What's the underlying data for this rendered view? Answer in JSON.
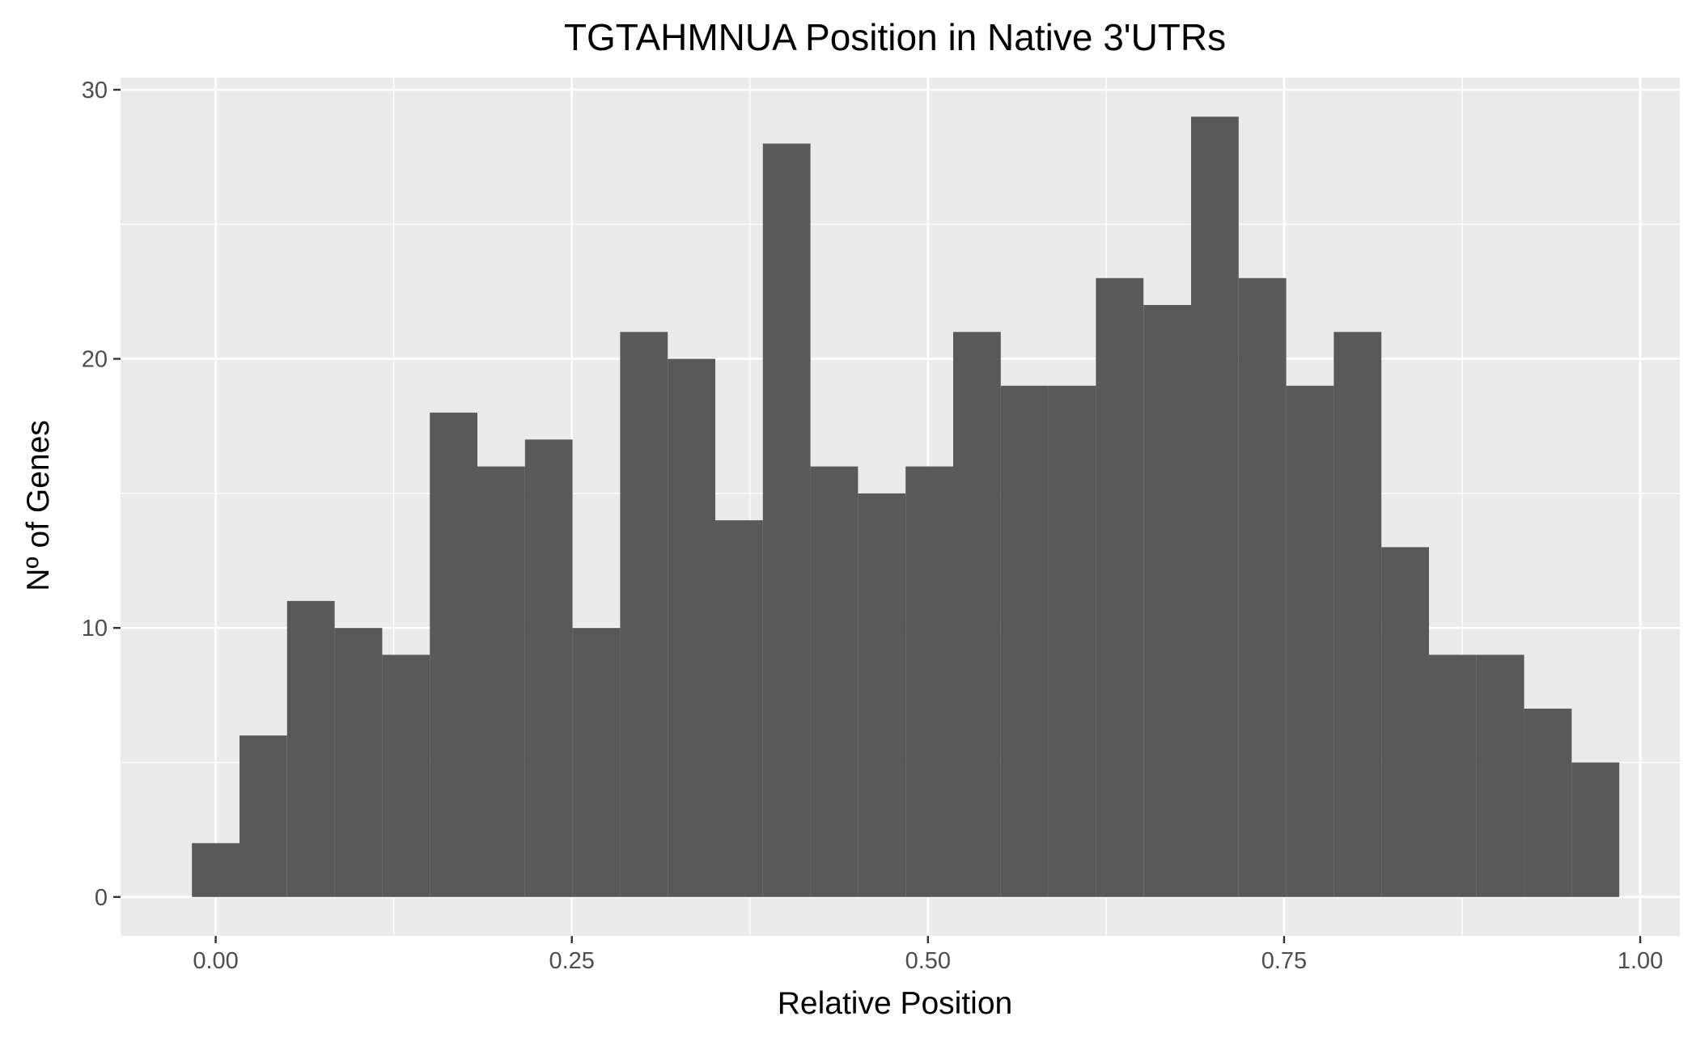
{
  "chart_data": {
    "type": "bar",
    "subtype": "histogram",
    "title": "TGTAHMNUA Position in Native 3'UTRs",
    "xlabel": "Relative Position",
    "ylabel": "Nº of Genes",
    "bin_width": 0.0334,
    "bin_centers": [
      0.0,
      0.0334,
      0.0668,
      0.1002,
      0.1336,
      0.167,
      0.2004,
      0.2338,
      0.2672,
      0.3006,
      0.334,
      0.3674,
      0.4008,
      0.4342,
      0.4676,
      0.501,
      0.5344,
      0.5678,
      0.6012,
      0.6346,
      0.668,
      0.7014,
      0.7348,
      0.7682,
      0.8016,
      0.835,
      0.8684,
      0.9018,
      0.9352,
      0.9686
    ],
    "values": [
      2,
      6,
      11,
      10,
      9,
      18,
      16,
      17,
      10,
      21,
      20,
      14,
      28,
      16,
      15,
      16,
      21,
      19,
      19,
      23,
      22,
      29,
      23,
      19,
      21,
      13,
      9,
      9,
      7,
      5
    ],
    "xlim": [
      -0.0668,
      1.0278
    ],
    "ylim": [
      -1.45,
      30.45
    ],
    "x_ticks": [
      "0.00",
      "0.25",
      "0.50",
      "0.75",
      "1.00"
    ],
    "x_tick_values": [
      0,
      0.25,
      0.5,
      0.75,
      1.0
    ],
    "y_ticks": [
      "0",
      "10",
      "20",
      "30"
    ],
    "y_tick_values": [
      0,
      10,
      20,
      30
    ],
    "grid": true,
    "colors": {
      "bar": "#595959",
      "panel": "#ebebeb",
      "grid": "#ffffff",
      "tick_text": "#4d4d4d",
      "tick_mark": "#333333"
    }
  }
}
